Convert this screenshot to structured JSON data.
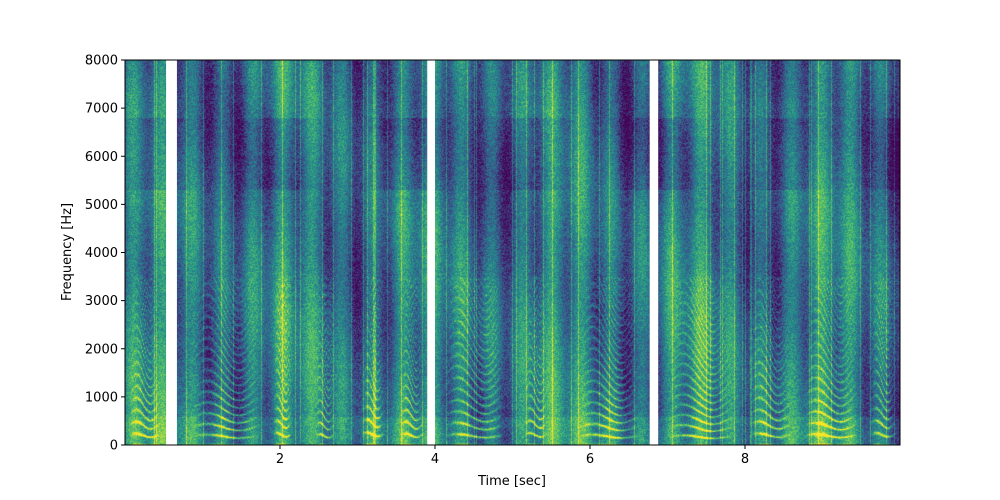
{
  "chart_data": {
    "type": "heatmap",
    "title": "",
    "xlabel": "Time [sec]",
    "ylabel": "Frequency [Hz]",
    "xlim": [
      0,
      10
    ],
    "ylim": [
      0,
      8000
    ],
    "x_ticks": [
      2,
      4,
      6,
      8
    ],
    "y_ticks": [
      0,
      1000,
      2000,
      3000,
      4000,
      5000,
      6000,
      7000,
      8000
    ],
    "colormap": [
      "#440154",
      "#3b528b",
      "#21918c",
      "#5ec962",
      "#fde725"
    ],
    "silent_gaps_sec": [
      [
        0.53,
        0.67
      ],
      [
        3.9,
        4.0
      ],
      [
        6.77,
        6.88
      ]
    ],
    "voiced_segments": [
      {
        "start": 0.05,
        "end": 0.45,
        "f0": 210
      },
      {
        "start": 0.85,
        "end": 1.75,
        "f0": 190
      },
      {
        "start": 1.9,
        "end": 2.15,
        "f0": 220
      },
      {
        "start": 2.45,
        "end": 2.7,
        "f0": 200
      },
      {
        "start": 3.05,
        "end": 3.35,
        "f0": 230
      },
      {
        "start": 3.55,
        "end": 3.85,
        "f0": 210
      },
      {
        "start": 4.1,
        "end": 4.9,
        "f0": 200
      },
      {
        "start": 5.15,
        "end": 5.45,
        "f0": 220
      },
      {
        "start": 5.85,
        "end": 6.65,
        "f0": 190
      },
      {
        "start": 7.0,
        "end": 7.85,
        "f0": 180
      },
      {
        "start": 8.05,
        "end": 8.6,
        "f0": 210
      },
      {
        "start": 8.75,
        "end": 9.45,
        "f0": 200
      },
      {
        "start": 9.6,
        "end": 9.95,
        "f0": 220
      }
    ]
  }
}
